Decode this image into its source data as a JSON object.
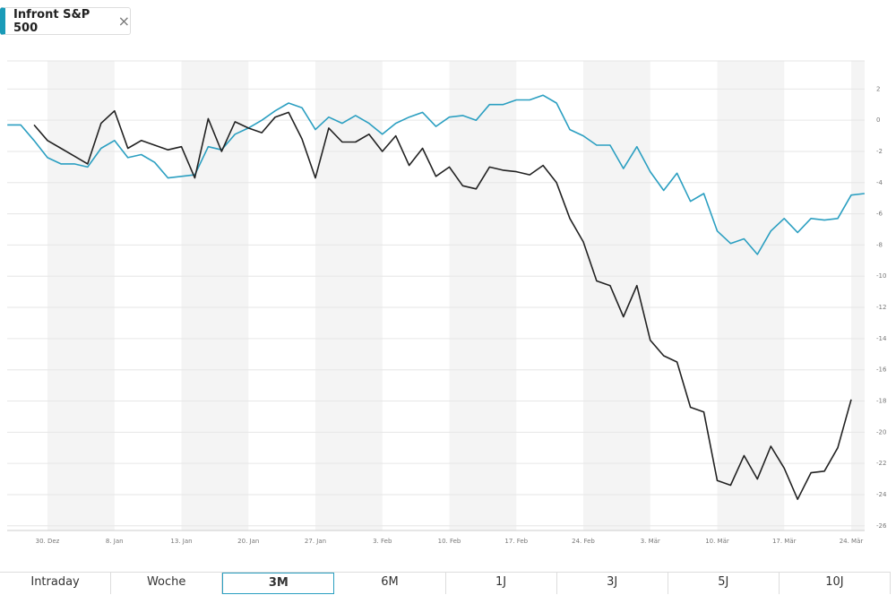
{
  "header": {
    "tag": "Infront S&P 500",
    "close": "×"
  },
  "chart_data": {
    "type": "line",
    "categories": [
      null,
      null,
      null,
      "30. Dez",
      null,
      null,
      null,
      null,
      "8. Jan",
      null,
      null,
      null,
      null,
      "13. Jan",
      null,
      null,
      null,
      null,
      "20. Jan",
      null,
      null,
      null,
      null,
      "27. Jan",
      null,
      null,
      null,
      null,
      "3. Feb",
      null,
      null,
      null,
      null,
      "10. Feb",
      null,
      null,
      null,
      null,
      "17. Feb",
      null,
      null,
      null,
      null,
      "24. Feb",
      null,
      null,
      null,
      null,
      "3. Mär",
      null,
      null,
      null,
      null,
      "10. Mär",
      null,
      null,
      null,
      null,
      "17. Mär",
      null,
      null,
      null,
      null,
      "24. Mär",
      null
    ],
    "series": [
      {
        "color": "#2b9fc1",
        "values": [
          -0.3,
          -0.3,
          -1.3,
          -2.4,
          -2.8,
          -2.8,
          -3.0,
          -1.8,
          -1.3,
          -2.4,
          -2.2,
          -2.7,
          -3.7,
          -3.6,
          -3.5,
          -1.7,
          -1.9,
          -0.9,
          -0.5,
          0,
          0.6,
          1.1,
          0.8,
          -0.6,
          0.2,
          -0.2,
          0.3,
          -0.2,
          -0.9,
          -0.2,
          0.2,
          0.5,
          -0.4,
          0.2,
          0.3,
          0,
          1.0,
          1.0,
          1.3,
          1.3,
          1.6,
          1.1,
          -0.6,
          -1.0,
          -1.6,
          -1.6,
          -3.1,
          -1.7,
          -3.3,
          -4.5,
          -3.4,
          -5.2,
          -4.7,
          -7.1,
          -7.9,
          -7.6,
          -8.6,
          -7.1,
          -6.3,
          -7.2,
          -6.3,
          -6.4,
          -6.3,
          -4.8,
          -4.7
        ]
      },
      {
        "color": "#222222",
        "values": [
          null,
          null,
          -0.3,
          -1.3,
          -1.8,
          -2.3,
          -2.8,
          -0.2,
          0.6,
          -1.8,
          -1.3,
          -1.6,
          -1.9,
          -1.7,
          -3.7,
          0.1,
          -2.0,
          -0.1,
          -0.5,
          -0.8,
          0.2,
          0.5,
          -1.2,
          -3.7,
          -0.5,
          -1.4,
          -1.4,
          -0.9,
          -2.0,
          -1.0,
          -2.9,
          -1.8,
          -3.6,
          -3.0,
          -4.2,
          -4.4,
          -3.0,
          -3.2,
          -3.3,
          -3.5,
          -2.9,
          -4.0,
          -6.3,
          -7.8,
          -10.3,
          -10.6,
          -12.6,
          -10.6,
          -14.1,
          -15.1,
          -15.5,
          -18.4,
          -18.7,
          -23.1,
          -23.4,
          -21.5,
          -23.0,
          -20.9,
          -22.3,
          -24.3,
          -22.6,
          -22.5,
          -21.0,
          -17.9,
          null
        ]
      }
    ],
    "ylim": [
      -26.3,
      3.8
    ],
    "yticks": [
      2,
      0,
      -2,
      -4,
      -6,
      -8,
      -10,
      -12,
      -14,
      -16,
      -18,
      -20,
      -22,
      -24,
      -26
    ],
    "grid": true
  },
  "range_buttons": {
    "labels": [
      "Intraday",
      "Woche",
      "3M",
      "6M",
      "1J",
      "3J",
      "5J",
      "10J"
    ],
    "selected": "3M"
  }
}
